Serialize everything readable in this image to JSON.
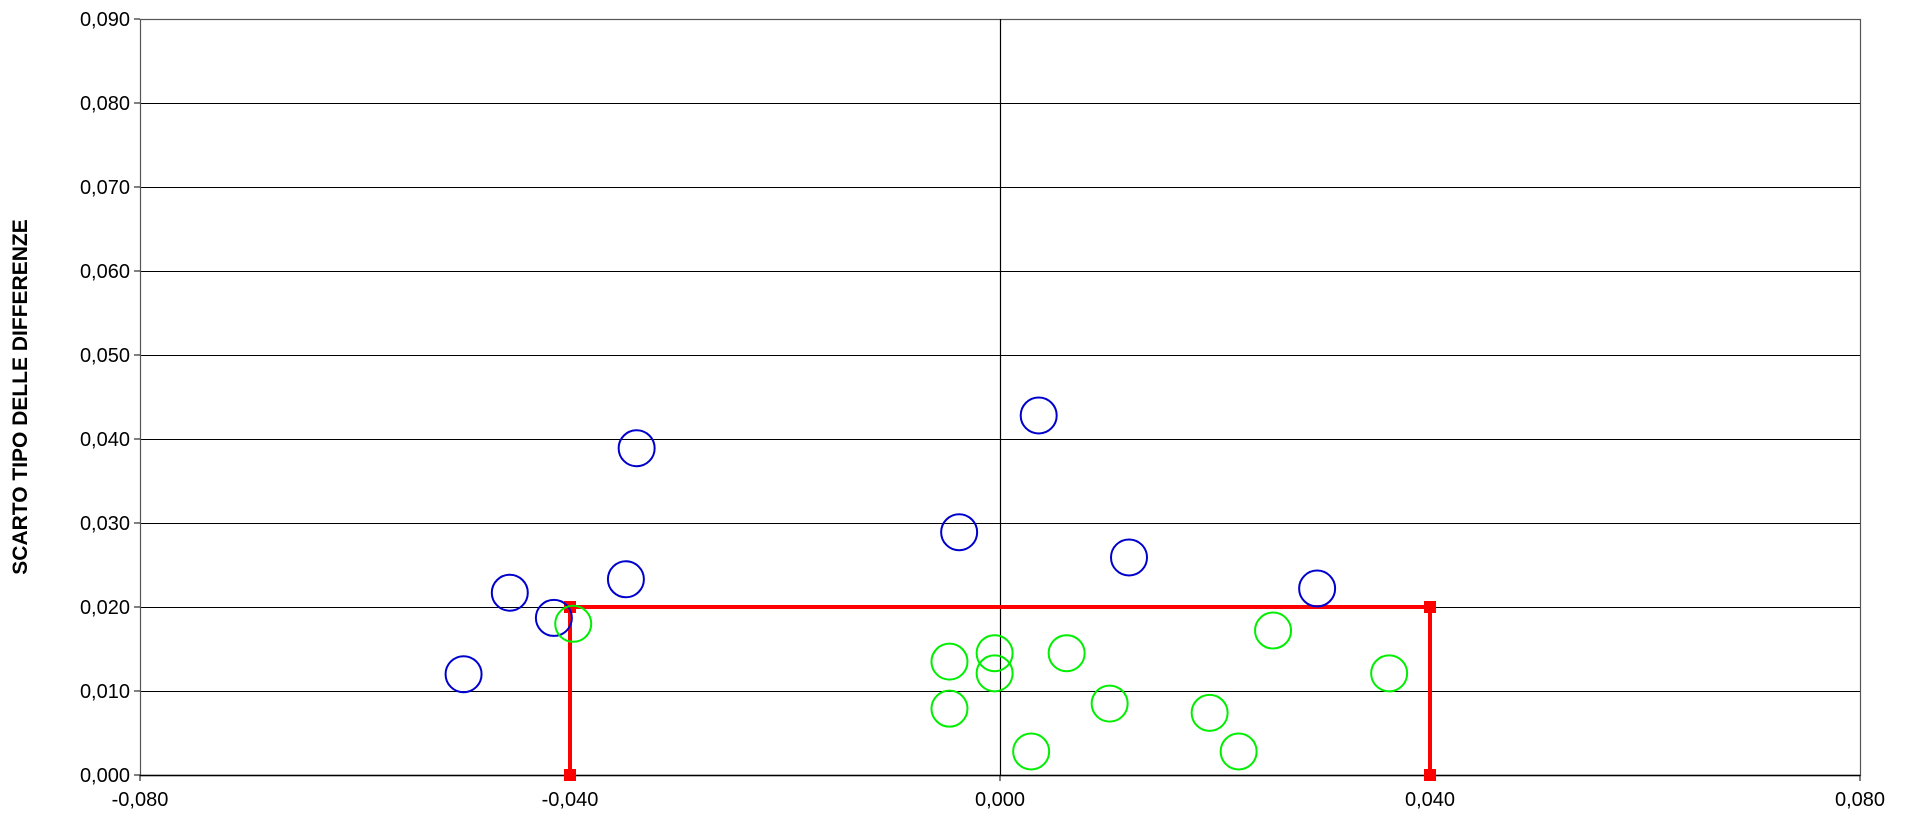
{
  "chart_data": {
    "type": "scatter",
    "title": "",
    "xlabel": "",
    "ylabel": "SCARTO TIPO DELLE DIFFERENZE",
    "xlim": [
      -0.08,
      0.08
    ],
    "ylim": [
      0.0,
      0.09
    ],
    "x_ticks": [
      -0.08,
      -0.04,
      0.0,
      0.04,
      0.08
    ],
    "x_tick_labels": [
      "-0,080",
      "-0,040",
      "0,000",
      "0,040",
      "0,080"
    ],
    "y_ticks": [
      0.0,
      0.01,
      0.02,
      0.03,
      0.04,
      0.05,
      0.06,
      0.07,
      0.08,
      0.09
    ],
    "y_tick_labels": [
      "0,000",
      "0,010",
      "0,020",
      "0,030",
      "0,040",
      "0,050",
      "0,060",
      "0,070",
      "0,080",
      "0,090"
    ],
    "grid": true,
    "series": [
      {
        "color": "#0000cc",
        "marker": "open-circle",
        "points": [
          {
            "x": -0.0499,
            "y": 0.012
          },
          {
            "x": -0.0456,
            "y": 0.0217
          },
          {
            "x": -0.0415,
            "y": 0.0187
          },
          {
            "x": -0.0348,
            "y": 0.0233
          },
          {
            "x": -0.0338,
            "y": 0.0389
          },
          {
            "x": -0.0038,
            "y": 0.0289
          },
          {
            "x": 0.0036,
            "y": 0.0428
          },
          {
            "x": 0.012,
            "y": 0.0259
          },
          {
            "x": 0.0295,
            "y": 0.0222
          }
        ]
      },
      {
        "color": "#00ee00",
        "marker": "open-circle",
        "points": [
          {
            "x": -0.0397,
            "y": 0.018
          },
          {
            "x": -0.0047,
            "y": 0.0135
          },
          {
            "x": -0.0047,
            "y": 0.0079
          },
          {
            "x": -0.0005,
            "y": 0.0145
          },
          {
            "x": -0.0005,
            "y": 0.0121
          },
          {
            "x": 0.0029,
            "y": 0.0028
          },
          {
            "x": 0.0062,
            "y": 0.0145
          },
          {
            "x": 0.0102,
            "y": 0.0085
          },
          {
            "x": 0.0195,
            "y": 0.0074
          },
          {
            "x": 0.0222,
            "y": 0.0028
          },
          {
            "x": 0.0254,
            "y": 0.0172
          },
          {
            "x": 0.0362,
            "y": 0.0121
          }
        ]
      }
    ],
    "limit_box": {
      "color": "#ff0000",
      "corners": [
        {
          "x": -0.04,
          "y": 0.0
        },
        {
          "x": -0.04,
          "y": 0.02
        },
        {
          "x": 0.04,
          "y": 0.02
        },
        {
          "x": 0.04,
          "y": 0.0
        }
      ]
    }
  }
}
